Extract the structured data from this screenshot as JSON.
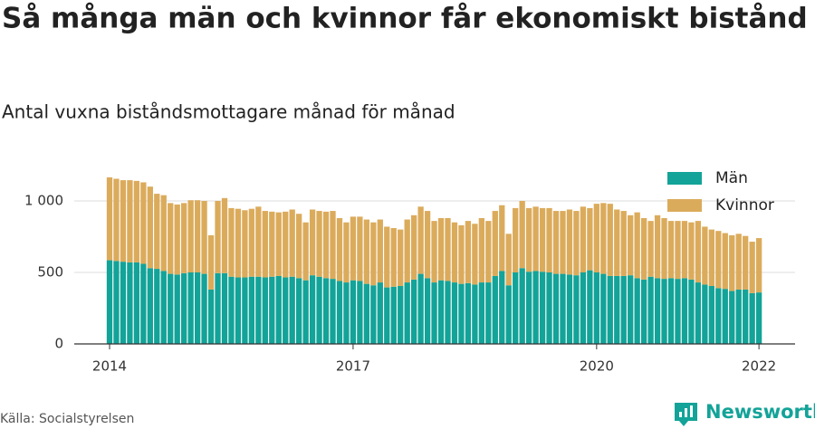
{
  "chart_data": {
    "type": "stacked_bar",
    "title": "Så många män och kvinnor får ekonomiskt bistånd i Huddinge",
    "subtitle": "Antal vuxna biståndsmottagare månad för månad",
    "source": "Källa: Socialstyrelsen",
    "logo": "Newsworthy",
    "categories": [
      "2014",
      null,
      null,
      null,
      null,
      null,
      null,
      null,
      null,
      null,
      null,
      null,
      null,
      null,
      null,
      null,
      null,
      null,
      null,
      null,
      null,
      null,
      null,
      null,
      null,
      null,
      null,
      null,
      null,
      null,
      null,
      null,
      null,
      null,
      null,
      null,
      "2017",
      null,
      null,
      null,
      null,
      null,
      null,
      null,
      null,
      null,
      null,
      null,
      null,
      null,
      null,
      null,
      null,
      null,
      null,
      null,
      null,
      null,
      null,
      null,
      null,
      null,
      null,
      null,
      null,
      null,
      null,
      null,
      null,
      null,
      null,
      null,
      "2020",
      null,
      null,
      null,
      null,
      null,
      null,
      null,
      null,
      null,
      null,
      null,
      null,
      null,
      null,
      null,
      null,
      null,
      null,
      null,
      null,
      null,
      null,
      null,
      "2022"
    ],
    "series": [
      {
        "name": "Män",
        "color": "#13a398",
        "values": [
          585,
          580,
          575,
          570,
          570,
          560,
          530,
          525,
          510,
          490,
          485,
          495,
          500,
          500,
          490,
          380,
          495,
          495,
          470,
          465,
          465,
          470,
          470,
          465,
          470,
          475,
          465,
          470,
          460,
          445,
          480,
          470,
          460,
          455,
          440,
          430,
          445,
          440,
          420,
          410,
          430,
          395,
          400,
          405,
          430,
          450,
          490,
          460,
          430,
          445,
          440,
          430,
          420,
          425,
          415,
          430,
          430,
          475,
          510,
          410,
          500,
          530,
          505,
          510,
          505,
          500,
          490,
          490,
          485,
          480,
          500,
          515,
          500,
          490,
          475,
          475,
          475,
          480,
          460,
          450,
          470,
          460,
          455,
          460,
          455,
          460,
          450,
          430,
          415,
          405,
          390,
          385,
          370,
          380,
          380,
          355,
          360
        ]
      },
      {
        "name": "Kvinnor",
        "color": "#dbab5c",
        "values": [
          580,
          575,
          570,
          575,
          570,
          570,
          570,
          525,
          530,
          495,
          490,
          490,
          505,
          505,
          510,
          380,
          505,
          525,
          480,
          480,
          470,
          475,
          490,
          465,
          455,
          445,
          460,
          470,
          450,
          405,
          460,
          460,
          465,
          475,
          440,
          420,
          445,
          450,
          450,
          440,
          440,
          425,
          410,
          395,
          440,
          450,
          470,
          470,
          430,
          435,
          440,
          420,
          410,
          435,
          425,
          450,
          430,
          455,
          460,
          360,
          450,
          470,
          445,
          450,
          445,
          450,
          440,
          440,
          455,
          450,
          460,
          435,
          480,
          495,
          505,
          465,
          455,
          420,
          460,
          430,
          390,
          440,
          425,
          400,
          405,
          400,
          400,
          430,
          405,
          395,
          400,
          390,
          390,
          390,
          375,
          360,
          380
        ]
      }
    ],
    "ylim": [
      0,
      1250
    ],
    "yticks": [
      0,
      500,
      {
        "value": 1000,
        "label": "1 000"
      }
    ],
    "grid": true,
    "legend": "top-right"
  }
}
